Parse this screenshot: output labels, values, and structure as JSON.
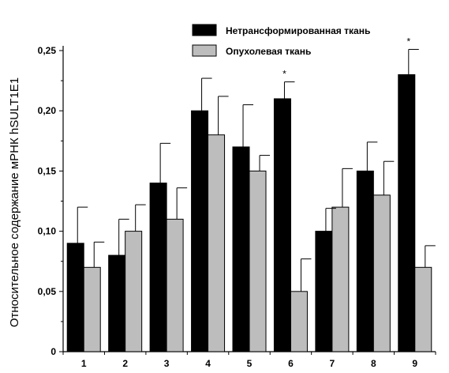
{
  "chart_data": {
    "type": "bar",
    "title": "",
    "xlabel": "",
    "ylabel": "Относительное содержание мРНК hSULT1E1",
    "categories": [
      "1",
      "2",
      "3",
      "4",
      "5",
      "6",
      "7",
      "8",
      "9"
    ],
    "series": [
      {
        "name": "Нетрансформированная ткань",
        "color": "#000000",
        "values": [
          0.09,
          0.08,
          0.14,
          0.2,
          0.17,
          0.21,
          0.1,
          0.15,
          0.23
        ],
        "errors": [
          0.03,
          0.03,
          0.033,
          0.027,
          0.035,
          0.014,
          0.019,
          0.024,
          0.021
        ]
      },
      {
        "name": "Опухолевая ткань",
        "color": "#bdbdbd",
        "values": [
          0.07,
          0.1,
          0.11,
          0.18,
          0.15,
          0.05,
          0.12,
          0.13,
          0.07
        ],
        "errors": [
          0.021,
          0.022,
          0.026,
          0.032,
          0.013,
          0.027,
          0.032,
          0.028,
          0.018
        ]
      }
    ],
    "ylim": [
      0,
      0.25
    ],
    "yticks": [
      0,
      0.05,
      0.1,
      0.15,
      0.2,
      0.25
    ],
    "ytick_labels": [
      "0",
      "0,05",
      "0,10",
      "0,15",
      "0,20",
      "0,25"
    ],
    "annotations": [
      {
        "category": "6",
        "series": 0,
        "text": "*"
      },
      {
        "category": "9",
        "series": 0,
        "text": "*"
      }
    ],
    "legend_position": "top-center",
    "grid": false
  }
}
